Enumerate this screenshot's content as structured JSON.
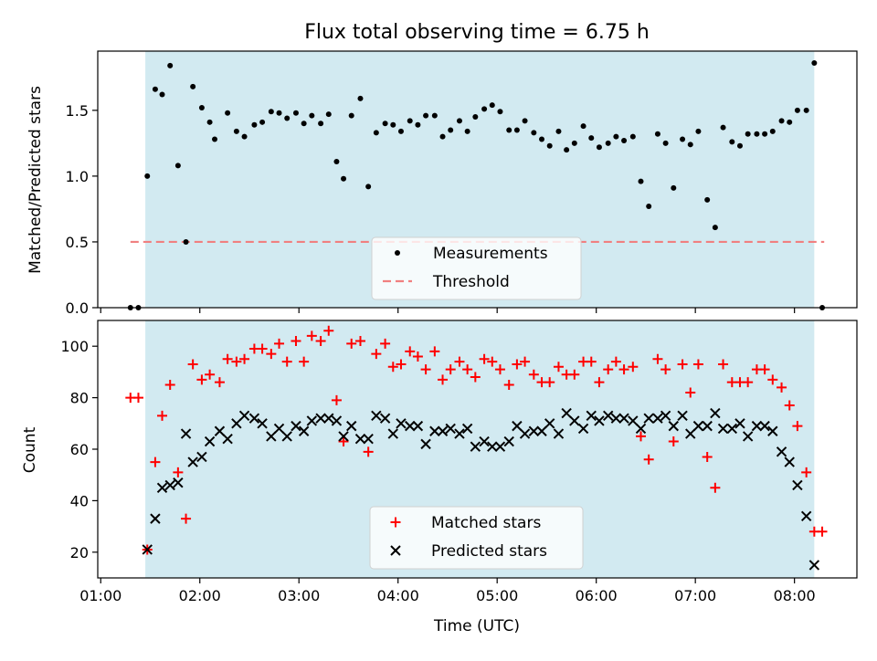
{
  "figure": {
    "title": "Flux total observing time = 6.75 h"
  },
  "chart_data": [
    {
      "type": "scatter",
      "ylabel": "Matched/Predicted stars",
      "xlim": [
        0.97,
        8.63
      ],
      "ylim": [
        0,
        1.95
      ],
      "yticks": [
        0.0,
        0.5,
        1.0,
        1.5
      ],
      "ytick_labels": [
        "0.0",
        "0.5",
        "1.0",
        "1.5"
      ],
      "grid": false,
      "legend_position": "bottom-center",
      "shaded_interval": [
        1.45,
        8.2
      ],
      "shade_color": "#add8e6",
      "threshold": {
        "name": "Threshold",
        "value": 0.5,
        "x_range": [
          1.3,
          8.3
        ],
        "color": "#f08080"
      },
      "series": [
        {
          "name": "Measurements",
          "marker": "dot",
          "color": "#000000",
          "points": [
            [
              1.3,
              0.0
            ],
            [
              1.38,
              0.0
            ],
            [
              1.47,
              1.0
            ],
            [
              1.55,
              1.66
            ],
            [
              1.62,
              1.62
            ],
            [
              1.7,
              1.84
            ],
            [
              1.78,
              1.08
            ],
            [
              1.86,
              0.5
            ],
            [
              1.93,
              1.68
            ],
            [
              2.02,
              1.52
            ],
            [
              2.1,
              1.41
            ],
            [
              2.15,
              1.28
            ],
            [
              2.28,
              1.48
            ],
            [
              2.37,
              1.34
            ],
            [
              2.45,
              1.3
            ],
            [
              2.55,
              1.39
            ],
            [
              2.63,
              1.41
            ],
            [
              2.72,
              1.49
            ],
            [
              2.8,
              1.48
            ],
            [
              2.88,
              1.44
            ],
            [
              2.97,
              1.48
            ],
            [
              3.05,
              1.4
            ],
            [
              3.13,
              1.46
            ],
            [
              3.22,
              1.4
            ],
            [
              3.3,
              1.47
            ],
            [
              3.38,
              1.11
            ],
            [
              3.45,
              0.98
            ],
            [
              3.53,
              1.46
            ],
            [
              3.62,
              1.59
            ],
            [
              3.7,
              0.92
            ],
            [
              3.78,
              1.33
            ],
            [
              3.87,
              1.4
            ],
            [
              3.95,
              1.39
            ],
            [
              4.03,
              1.34
            ],
            [
              4.12,
              1.42
            ],
            [
              4.2,
              1.39
            ],
            [
              4.28,
              1.46
            ],
            [
              4.37,
              1.46
            ],
            [
              4.45,
              1.3
            ],
            [
              4.53,
              1.35
            ],
            [
              4.62,
              1.42
            ],
            [
              4.7,
              1.34
            ],
            [
              4.78,
              1.45
            ],
            [
              4.87,
              1.51
            ],
            [
              4.95,
              1.54
            ],
            [
              5.03,
              1.49
            ],
            [
              5.12,
              1.35
            ],
            [
              5.2,
              1.35
            ],
            [
              5.28,
              1.42
            ],
            [
              5.37,
              1.33
            ],
            [
              5.45,
              1.28
            ],
            [
              5.53,
              1.23
            ],
            [
              5.62,
              1.34
            ],
            [
              5.7,
              1.2
            ],
            [
              5.78,
              1.25
            ],
            [
              5.87,
              1.38
            ],
            [
              5.95,
              1.29
            ],
            [
              6.03,
              1.22
            ],
            [
              6.12,
              1.25
            ],
            [
              6.2,
              1.3
            ],
            [
              6.28,
              1.27
            ],
            [
              6.37,
              1.3
            ],
            [
              6.45,
              0.96
            ],
            [
              6.53,
              0.77
            ],
            [
              6.62,
              1.32
            ],
            [
              6.7,
              1.25
            ],
            [
              6.78,
              0.91
            ],
            [
              6.87,
              1.28
            ],
            [
              6.95,
              1.24
            ],
            [
              7.03,
              1.34
            ],
            [
              7.12,
              0.82
            ],
            [
              7.2,
              0.61
            ],
            [
              7.28,
              1.37
            ],
            [
              7.37,
              1.26
            ],
            [
              7.45,
              1.23
            ],
            [
              7.53,
              1.32
            ],
            [
              7.62,
              1.32
            ],
            [
              7.7,
              1.32
            ],
            [
              7.78,
              1.34
            ],
            [
              7.87,
              1.42
            ],
            [
              7.95,
              1.41
            ],
            [
              8.03,
              1.5
            ],
            [
              8.12,
              1.5
            ],
            [
              8.2,
              1.86
            ],
            [
              8.28,
              0.0
            ]
          ]
        }
      ]
    },
    {
      "type": "scatter",
      "xlabel": "Time (UTC)",
      "ylabel": "Count",
      "xlim": [
        0.97,
        8.63
      ],
      "ylim": [
        10,
        110
      ],
      "xticks": [
        1,
        2,
        3,
        4,
        5,
        6,
        7,
        8
      ],
      "xtick_labels": [
        "01:00",
        "02:00",
        "03:00",
        "04:00",
        "05:00",
        "06:00",
        "07:00",
        "08:00"
      ],
      "yticks": [
        20,
        40,
        60,
        80,
        100
      ],
      "ytick_labels": [
        "20",
        "40",
        "60",
        "80",
        "100"
      ],
      "grid": false,
      "legend_position": "bottom-center",
      "shaded_interval": [
        1.45,
        8.2
      ],
      "shade_color": "#add8e6",
      "series": [
        {
          "name": "Matched stars",
          "marker": "plus",
          "color": "#ff0000",
          "points": [
            [
              1.3,
              80
            ],
            [
              1.38,
              80
            ],
            [
              1.47,
              21
            ],
            [
              1.55,
              55
            ],
            [
              1.62,
              73
            ],
            [
              1.7,
              85
            ],
            [
              1.78,
              51
            ],
            [
              1.86,
              33
            ],
            [
              1.93,
              93
            ],
            [
              2.02,
              87
            ],
            [
              2.1,
              89
            ],
            [
              2.2,
              86
            ],
            [
              2.28,
              95
            ],
            [
              2.37,
              94
            ],
            [
              2.45,
              95
            ],
            [
              2.55,
              99
            ],
            [
              2.63,
              99
            ],
            [
              2.72,
              97
            ],
            [
              2.8,
              101
            ],
            [
              2.88,
              94
            ],
            [
              2.97,
              102
            ],
            [
              3.05,
              94
            ],
            [
              3.13,
              104
            ],
            [
              3.22,
              102
            ],
            [
              3.3,
              106
            ],
            [
              3.38,
              79
            ],
            [
              3.45,
              63
            ],
            [
              3.53,
              101
            ],
            [
              3.62,
              102
            ],
            [
              3.7,
              59
            ],
            [
              3.78,
              97
            ],
            [
              3.87,
              101
            ],
            [
              3.95,
              92
            ],
            [
              4.03,
              93
            ],
            [
              4.12,
              98
            ],
            [
              4.2,
              96
            ],
            [
              4.28,
              91
            ],
            [
              4.37,
              98
            ],
            [
              4.45,
              87
            ],
            [
              4.53,
              91
            ],
            [
              4.62,
              94
            ],
            [
              4.7,
              91
            ],
            [
              4.78,
              88
            ],
            [
              4.87,
              95
            ],
            [
              4.95,
              94
            ],
            [
              5.03,
              91
            ],
            [
              5.12,
              85
            ],
            [
              5.2,
              93
            ],
            [
              5.28,
              94
            ],
            [
              5.37,
              89
            ],
            [
              5.45,
              86
            ],
            [
              5.53,
              86
            ],
            [
              5.62,
              92
            ],
            [
              5.7,
              89
            ],
            [
              5.78,
              89
            ],
            [
              5.87,
              94
            ],
            [
              5.95,
              94
            ],
            [
              6.03,
              86
            ],
            [
              6.12,
              91
            ],
            [
              6.2,
              94
            ],
            [
              6.28,
              91
            ],
            [
              6.37,
              92
            ],
            [
              6.45,
              65
            ],
            [
              6.53,
              56
            ],
            [
              6.62,
              95
            ],
            [
              6.7,
              91
            ],
            [
              6.78,
              63
            ],
            [
              6.87,
              93
            ],
            [
              6.95,
              82
            ],
            [
              7.03,
              93
            ],
            [
              7.12,
              57
            ],
            [
              7.2,
              45
            ],
            [
              7.28,
              93
            ],
            [
              7.37,
              86
            ],
            [
              7.45,
              86
            ],
            [
              7.53,
              86
            ],
            [
              7.62,
              91
            ],
            [
              7.7,
              91
            ],
            [
              7.78,
              87
            ],
            [
              7.87,
              84
            ],
            [
              7.95,
              77
            ],
            [
              8.03,
              69
            ],
            [
              8.12,
              51
            ],
            [
              8.2,
              28
            ],
            [
              8.28,
              28
            ]
          ]
        },
        {
          "name": "Predicted stars",
          "marker": "x",
          "color": "#000000",
          "points": [
            [
              1.47,
              21
            ],
            [
              1.55,
              33
            ],
            [
              1.62,
              45
            ],
            [
              1.7,
              46
            ],
            [
              1.78,
              47
            ],
            [
              1.86,
              66
            ],
            [
              1.93,
              55
            ],
            [
              2.02,
              57
            ],
            [
              2.1,
              63
            ],
            [
              2.2,
              67
            ],
            [
              2.28,
              64
            ],
            [
              2.37,
              70
            ],
            [
              2.45,
              73
            ],
            [
              2.55,
              72
            ],
            [
              2.63,
              70
            ],
            [
              2.72,
              65
            ],
            [
              2.8,
              68
            ],
            [
              2.88,
              65
            ],
            [
              2.97,
              69
            ],
            [
              3.05,
              67
            ],
            [
              3.13,
              71
            ],
            [
              3.22,
              72
            ],
            [
              3.3,
              72
            ],
            [
              3.38,
              71
            ],
            [
              3.45,
              65
            ],
            [
              3.53,
              69
            ],
            [
              3.62,
              64
            ],
            [
              3.7,
              64
            ],
            [
              3.78,
              73
            ],
            [
              3.87,
              72
            ],
            [
              3.95,
              66
            ],
            [
              4.03,
              70
            ],
            [
              4.12,
              69
            ],
            [
              4.2,
              69
            ],
            [
              4.28,
              62
            ],
            [
              4.37,
              67
            ],
            [
              4.45,
              67
            ],
            [
              4.53,
              68
            ],
            [
              4.62,
              66
            ],
            [
              4.7,
              68
            ],
            [
              4.78,
              61
            ],
            [
              4.87,
              63
            ],
            [
              4.95,
              61
            ],
            [
              5.03,
              61
            ],
            [
              5.12,
              63
            ],
            [
              5.2,
              69
            ],
            [
              5.28,
              66
            ],
            [
              5.37,
              67
            ],
            [
              5.45,
              67
            ],
            [
              5.53,
              70
            ],
            [
              5.62,
              66
            ],
            [
              5.7,
              74
            ],
            [
              5.78,
              71
            ],
            [
              5.87,
              68
            ],
            [
              5.95,
              73
            ],
            [
              6.03,
              71
            ],
            [
              6.12,
              73
            ],
            [
              6.2,
              72
            ],
            [
              6.28,
              72
            ],
            [
              6.37,
              71
            ],
            [
              6.45,
              68
            ],
            [
              6.53,
              72
            ],
            [
              6.62,
              72
            ],
            [
              6.7,
              73
            ],
            [
              6.78,
              69
            ],
            [
              6.87,
              73
            ],
            [
              6.95,
              66
            ],
            [
              7.03,
              69
            ],
            [
              7.12,
              69
            ],
            [
              7.2,
              74
            ],
            [
              7.28,
              68
            ],
            [
              7.37,
              68
            ],
            [
              7.45,
              70
            ],
            [
              7.53,
              65
            ],
            [
              7.62,
              69
            ],
            [
              7.7,
              69
            ],
            [
              7.78,
              67
            ],
            [
              7.87,
              59
            ],
            [
              7.95,
              55
            ],
            [
              8.03,
              46
            ],
            [
              8.12,
              34
            ],
            [
              8.2,
              15
            ]
          ]
        }
      ]
    }
  ]
}
